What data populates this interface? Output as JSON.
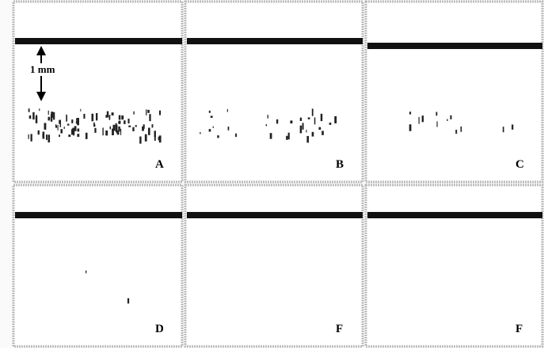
{
  "scale_label": "1 mm",
  "panels": [
    {
      "label": "A"
    },
    {
      "label": "B"
    },
    {
      "label": "C"
    },
    {
      "label": "D"
    },
    {
      "label": "F"
    },
    {
      "label": "F"
    }
  ]
}
